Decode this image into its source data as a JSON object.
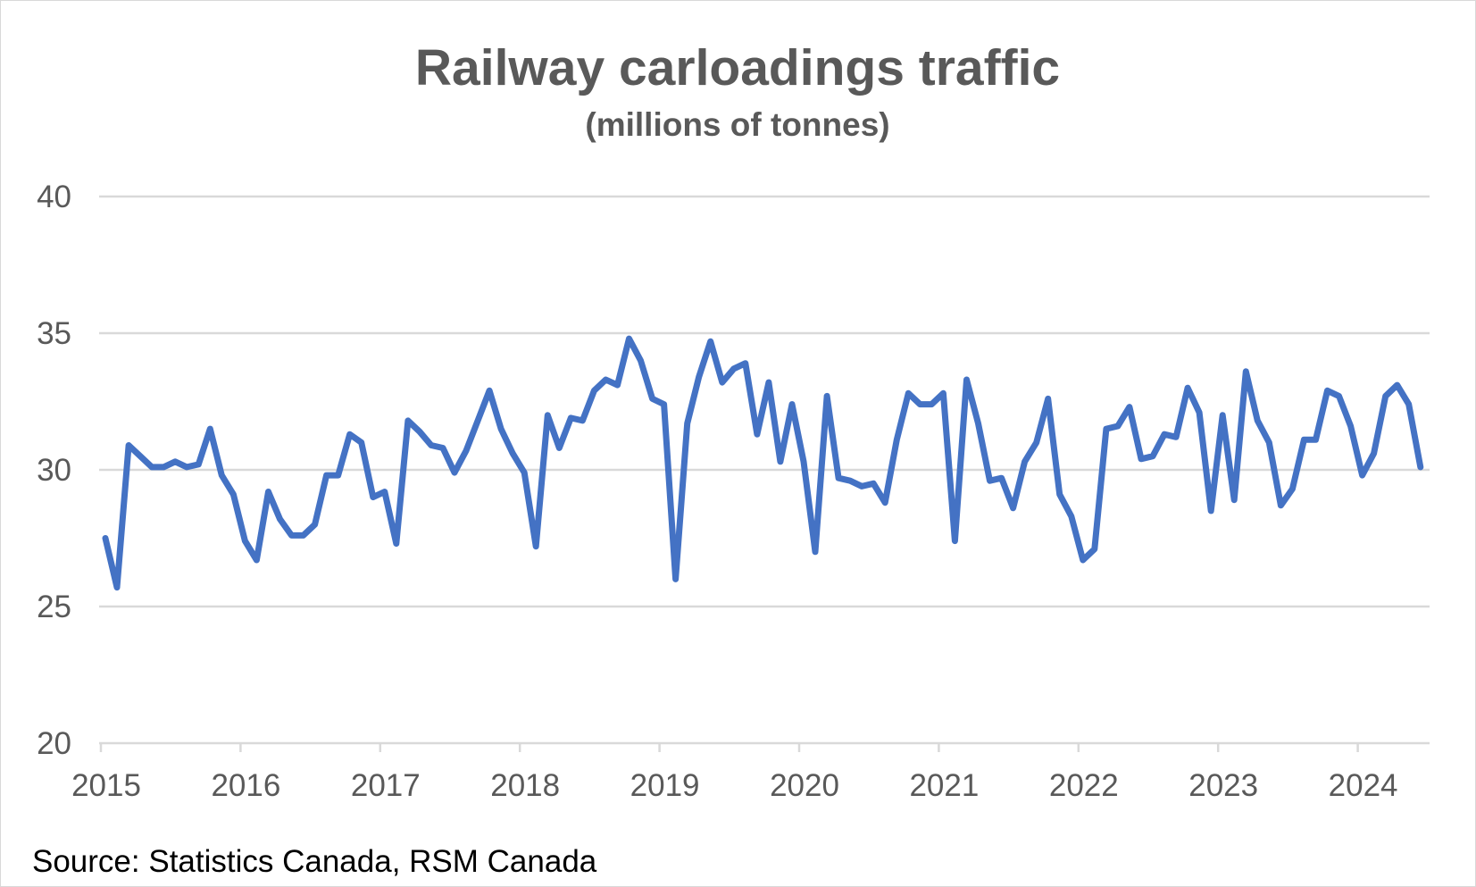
{
  "chart_data": {
    "type": "line",
    "title": "Railway carloadings traffic",
    "subtitle": "(millions of tonnes)",
    "source": "Source: Statistics Canada, RSM Canada",
    "xlabel": "",
    "ylabel": "",
    "ylim": [
      20,
      40
    ],
    "yticks": [
      "20",
      "25",
      "30",
      "35",
      "40"
    ],
    "xticks": [
      "2015",
      "2016",
      "2017",
      "2018",
      "2019",
      "2020",
      "2021",
      "2022",
      "2023",
      "2024"
    ],
    "x_start": "2015-01",
    "x_frequency": "monthly",
    "grid": true,
    "legend": "none",
    "line_color": "#4472C4",
    "series": [
      {
        "values": [
          27.5,
          25.7,
          30.9,
          30.5,
          30.1,
          30.1,
          30.3,
          30.1,
          30.2,
          31.5,
          29.8,
          29.1,
          27.4,
          26.7,
          29.2,
          28.2,
          27.6,
          27.6,
          28.0,
          29.8,
          29.8,
          31.3,
          31.0,
          29.0,
          29.2,
          27.3,
          31.8,
          31.4,
          30.9,
          30.8,
          29.9,
          30.7,
          31.8,
          32.9,
          31.5,
          30.6,
          29.9,
          27.2,
          32.0,
          30.8,
          31.9,
          31.8,
          32.9,
          33.3,
          33.1,
          34.8,
          34.0,
          32.6,
          32.4,
          26.0,
          31.7,
          33.4,
          34.7,
          33.2,
          33.7,
          33.9,
          31.3,
          33.2,
          30.3,
          32.4,
          30.3,
          27.0,
          32.7,
          29.7,
          29.6,
          29.4,
          29.5,
          28.8,
          31.1,
          32.8,
          32.4,
          32.4,
          32.8,
          27.4,
          33.3,
          31.7,
          29.6,
          29.7,
          28.6,
          30.3,
          31.0,
          32.6,
          29.1,
          28.3,
          26.7,
          27.1,
          31.5,
          31.6,
          32.3,
          30.4,
          30.5,
          31.3,
          31.2,
          33.0,
          32.1,
          28.5,
          32.0,
          28.9,
          33.6,
          31.8,
          31.0,
          28.7,
          29.3,
          31.1,
          31.1,
          32.9,
          32.7,
          31.6,
          29.8,
          30.6,
          32.7,
          33.1,
          32.4,
          30.1
        ]
      }
    ]
  }
}
